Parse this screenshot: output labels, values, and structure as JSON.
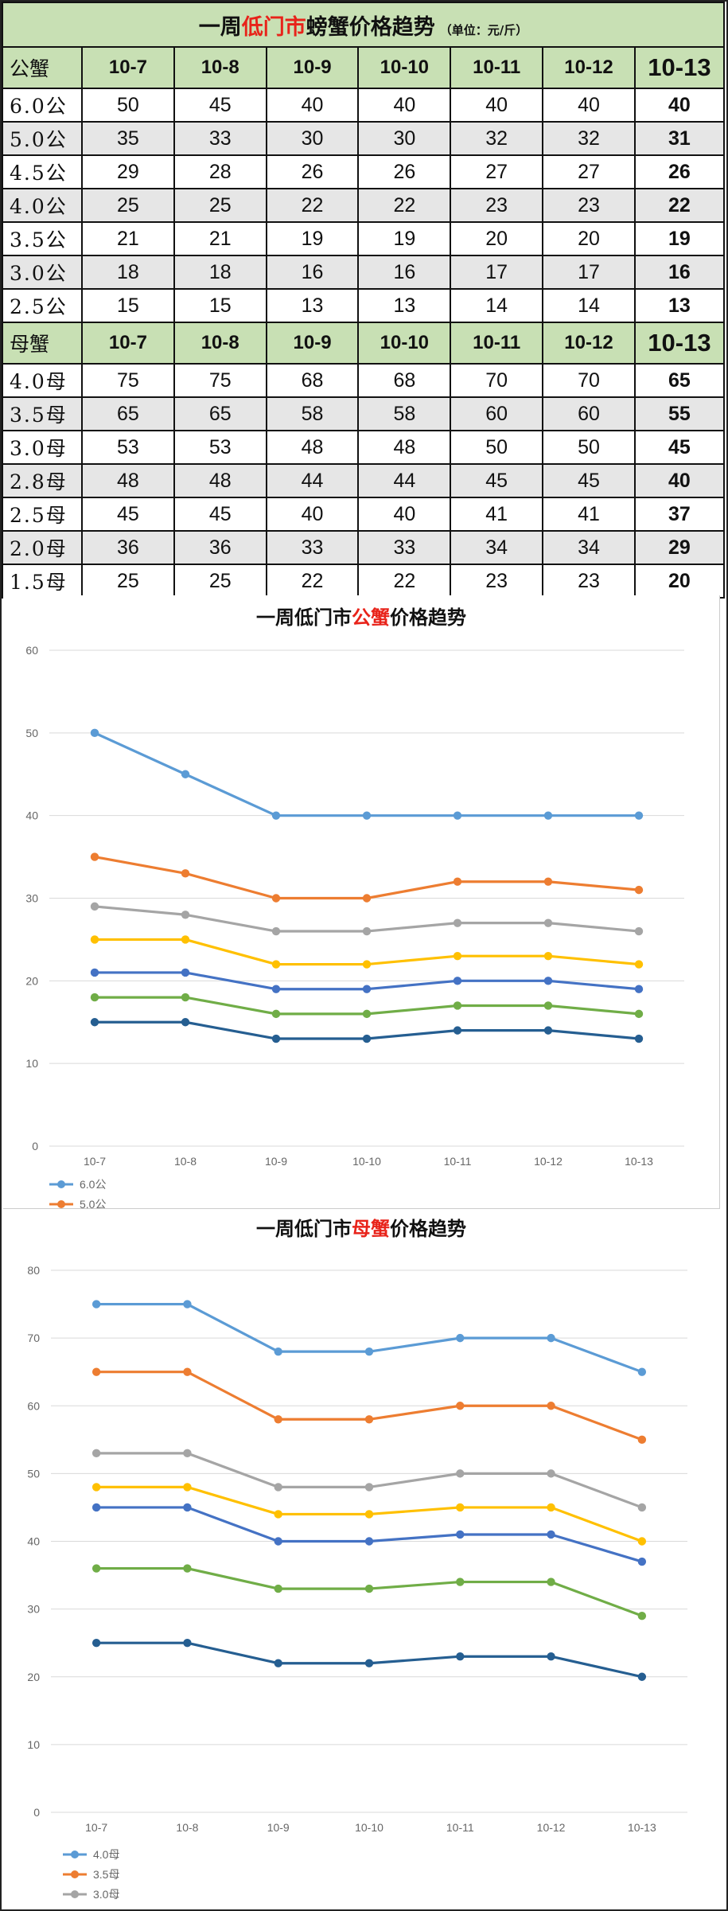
{
  "table": {
    "title_pre": "一周",
    "title_hl": "低门市",
    "title_post": "螃蟹价格趋势",
    "unit": "（单位：元/斤）",
    "male_header": "公蟹",
    "female_header": "母蟹",
    "dates": [
      "10-7",
      "10-8",
      "10-9",
      "10-10",
      "10-11",
      "10-12",
      "10-13"
    ],
    "male_rows": [
      {
        "label": "6.0公",
        "values": [
          "50",
          "45",
          "40",
          "40",
          "40",
          "40",
          "40"
        ]
      },
      {
        "label": "5.0公",
        "values": [
          "35",
          "33",
          "30",
          "30",
          "32",
          "32",
          "31"
        ]
      },
      {
        "label": "4.5公",
        "values": [
          "29",
          "28",
          "26",
          "26",
          "27",
          "27",
          "26"
        ]
      },
      {
        "label": "4.0公",
        "values": [
          "25",
          "25",
          "22",
          "22",
          "23",
          "23",
          "22"
        ]
      },
      {
        "label": "3.5公",
        "values": [
          "21",
          "21",
          "19",
          "19",
          "20",
          "20",
          "19"
        ]
      },
      {
        "label": "3.0公",
        "values": [
          "18",
          "18",
          "16",
          "16",
          "17",
          "17",
          "16"
        ]
      },
      {
        "label": "2.5公",
        "values": [
          "15",
          "15",
          "13",
          "13",
          "14",
          "14",
          "13"
        ]
      }
    ],
    "female_rows": [
      {
        "label": "4.0母",
        "values": [
          "75",
          "75",
          "68",
          "68",
          "70",
          "70",
          "65"
        ]
      },
      {
        "label": "3.5母",
        "values": [
          "65",
          "65",
          "58",
          "58",
          "60",
          "60",
          "55"
        ]
      },
      {
        "label": "3.0母",
        "values": [
          "53",
          "53",
          "48",
          "48",
          "50",
          "50",
          "45"
        ]
      },
      {
        "label": "2.8母",
        "values": [
          "48",
          "48",
          "44",
          "44",
          "45",
          "45",
          "40"
        ]
      },
      {
        "label": "2.5母",
        "values": [
          "45",
          "45",
          "40",
          "40",
          "41",
          "41",
          "37"
        ]
      },
      {
        "label": "2.0母",
        "values": [
          "36",
          "36",
          "33",
          "33",
          "34",
          "34",
          "29"
        ]
      },
      {
        "label": "1.5母",
        "values": [
          "25",
          "25",
          "22",
          "22",
          "23",
          "23",
          "20"
        ]
      }
    ]
  },
  "chart_data": [
    {
      "type": "line",
      "title_pre": "一周低门市",
      "title_hl": "公蟹",
      "title_post": "价格趋势",
      "categories": [
        "10-7",
        "10-8",
        "10-9",
        "10-10",
        "10-11",
        "10-12",
        "10-13"
      ],
      "ylim": [
        0,
        60
      ],
      "yticks": [
        0,
        10,
        20,
        30,
        40,
        50,
        60
      ],
      "grid": true,
      "legend_position": "bottom-left",
      "legend_visible": [
        "6.0公",
        "5.0公"
      ],
      "series": [
        {
          "name": "6.0公",
          "color": "#5b9bd5",
          "values": [
            50,
            45,
            40,
            40,
            40,
            40,
            40
          ]
        },
        {
          "name": "5.0公",
          "color": "#ed7d31",
          "values": [
            35,
            33,
            30,
            30,
            32,
            32,
            31
          ]
        },
        {
          "name": "",
          "color": "#a5a5a5",
          "values": [
            29,
            28,
            26,
            26,
            27,
            27,
            26
          ]
        },
        {
          "name": "",
          "color": "#ffc000",
          "values": [
            25,
            25,
            22,
            22,
            23,
            23,
            22
          ]
        },
        {
          "name": "",
          "color": "#4472c4",
          "values": [
            21,
            21,
            19,
            19,
            20,
            20,
            19
          ]
        },
        {
          "name": "",
          "color": "#70ad47",
          "values": [
            18,
            18,
            16,
            16,
            17,
            17,
            16
          ]
        },
        {
          "name": "",
          "color": "#255e91",
          "values": [
            15,
            15,
            13,
            13,
            14,
            14,
            13
          ]
        }
      ]
    },
    {
      "type": "line",
      "title_pre": "一周低门市",
      "title_hl": "母蟹",
      "title_post": "价格趋势",
      "categories": [
        "10-7",
        "10-8",
        "10-9",
        "10-10",
        "10-11",
        "10-12",
        "10-13"
      ],
      "ylim": [
        0,
        80
      ],
      "yticks": [
        0,
        10,
        20,
        30,
        40,
        50,
        60,
        70,
        80
      ],
      "grid": true,
      "legend_position": "bottom-left",
      "legend_visible": [
        "4.0母",
        "3.5母",
        "3.0母"
      ],
      "series": [
        {
          "name": "4.0母",
          "color": "#5b9bd5",
          "values": [
            75,
            75,
            68,
            68,
            70,
            70,
            65
          ]
        },
        {
          "name": "3.5母",
          "color": "#ed7d31",
          "values": [
            65,
            65,
            58,
            58,
            60,
            60,
            55
          ]
        },
        {
          "name": "3.0母",
          "color": "#a5a5a5",
          "values": [
            53,
            53,
            48,
            48,
            50,
            50,
            45
          ]
        },
        {
          "name": "",
          "color": "#ffc000",
          "values": [
            48,
            48,
            44,
            44,
            45,
            45,
            40
          ]
        },
        {
          "name": "",
          "color": "#4472c4",
          "values": [
            45,
            45,
            40,
            40,
            41,
            41,
            37
          ]
        },
        {
          "name": "",
          "color": "#70ad47",
          "values": [
            36,
            36,
            33,
            33,
            34,
            34,
            29
          ]
        },
        {
          "name": "",
          "color": "#255e91",
          "values": [
            25,
            25,
            22,
            22,
            23,
            23,
            20
          ]
        }
      ]
    }
  ]
}
